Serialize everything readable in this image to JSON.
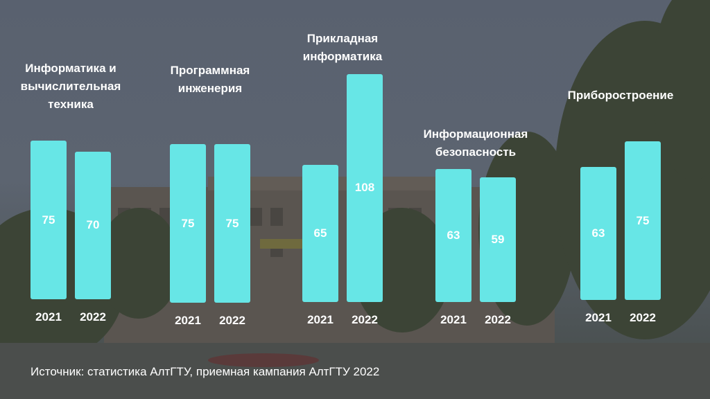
{
  "chart_data": {
    "type": "bar",
    "groups": [
      {
        "title": "Информатика и\nвычислительная\nтехника",
        "bars": [
          {
            "year": "2021",
            "value": 75
          },
          {
            "year": "2022",
            "value": 70
          }
        ]
      },
      {
        "title": "Программная\nинженерия",
        "bars": [
          {
            "year": "2021",
            "value": 75
          },
          {
            "year": "2022",
            "value": 75
          }
        ]
      },
      {
        "title": "Прикладная\nинформатика",
        "bars": [
          {
            "year": "2021",
            "value": 65
          },
          {
            "year": "2022",
            "value": 108
          }
        ]
      },
      {
        "title": "Информационная\nбезопасность",
        "bars": [
          {
            "year": "2021",
            "value": 63
          },
          {
            "year": "2022",
            "value": 59
          }
        ]
      },
      {
        "title": "Приборостроение",
        "bars": [
          {
            "year": "2021",
            "value": 63
          },
          {
            "year": "2022",
            "value": 75
          }
        ]
      }
    ],
    "bar_color": "#67e6e6"
  },
  "source": "Источник: статистика АлтГТУ, приемная кампания АлтГТУ 2022"
}
